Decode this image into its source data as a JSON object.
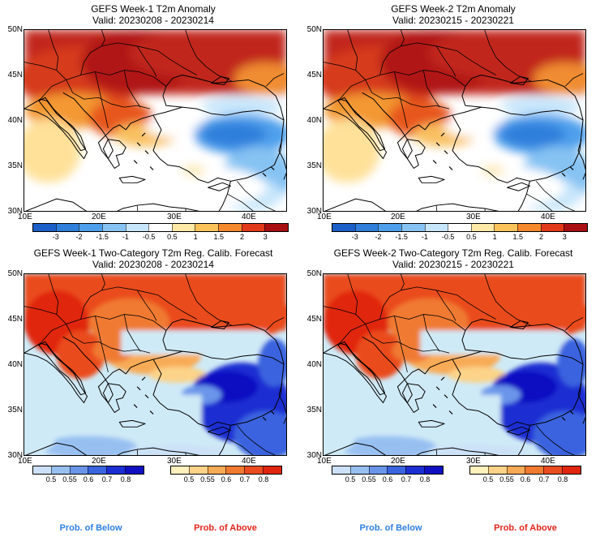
{
  "panels": [
    {
      "title": "GEFS Week-1 T2m Anomaly",
      "valid": "Valid: 20230208 - 20230214"
    },
    {
      "title": "GEFS Week-2 T2m Anomaly",
      "valid": "Valid: 20230215 - 20230221"
    },
    {
      "title": "GEFS Week-1 Two-Category T2m Reg. Calib. Forecast",
      "valid": "Valid: 20230208 - 20230214"
    },
    {
      "title": "GEFS Week-2 Two-Category T2m Reg. Calib. Forecast",
      "valid": "Valid: 20230215 - 20230221"
    }
  ],
  "lat_labels": [
    "50N",
    "45N",
    "40N",
    "35N",
    "30N"
  ],
  "lon_labels": [
    "10E",
    "20E",
    "30E",
    "40E"
  ],
  "anomaly_colorbar": {
    "ticks": [
      "-3",
      "-2",
      "-1.5",
      "-1",
      "-0.5",
      "0.5",
      "1",
      "1.5",
      "2",
      "3"
    ],
    "colors": [
      "#1c5fc8",
      "#2f7fdb",
      "#4d9fec",
      "#86c3f3",
      "#c7e6fb",
      "#ffffff",
      "#ffe9a6",
      "#fcc35a",
      "#f5892d",
      "#e3391b",
      "#a80f12"
    ]
  },
  "prob_below_colorbar": {
    "ticks": [
      "0.5",
      "0.55",
      "0.6",
      "0.7",
      "0.8"
    ],
    "colors": [
      "#cce1f7",
      "#97c0f1",
      "#6a95ea",
      "#3b64df",
      "#1b2fd2",
      "#0e10c2"
    ]
  },
  "prob_above_colorbar": {
    "ticks": [
      "0.5",
      "0.55",
      "0.6",
      "0.7",
      "0.8"
    ],
    "colors": [
      "#fff0bd",
      "#fcd388",
      "#f8ab57",
      "#f07a30",
      "#ea4b1f",
      "#e0260f"
    ]
  },
  "legend": {
    "below": "Prob. of Below",
    "above": "Prob. of Above",
    "below_color": "#2f80e0",
    "above_color": "#e0261b"
  }
}
